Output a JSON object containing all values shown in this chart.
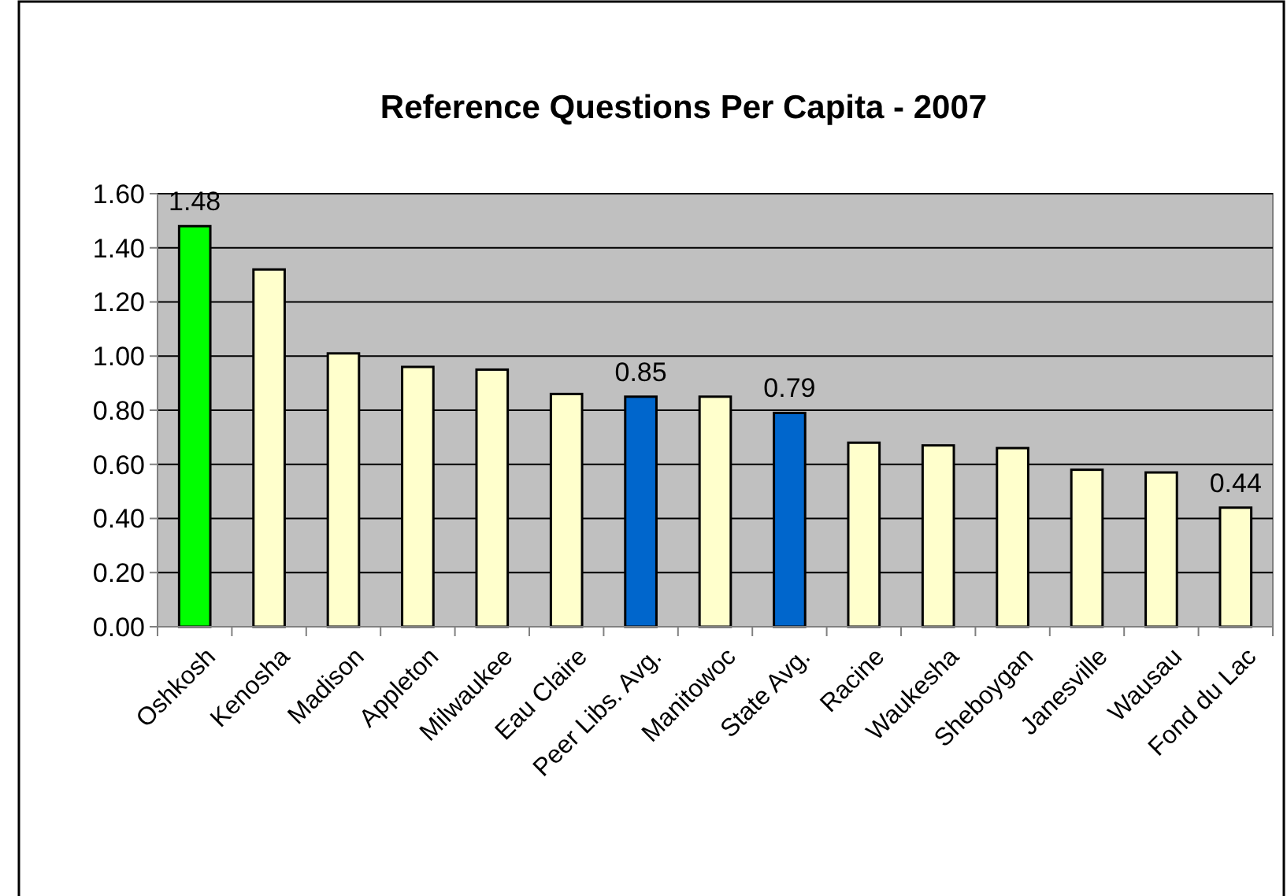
{
  "chart_data": {
    "type": "bar",
    "title": "Reference Questions Per Capita - 2007",
    "categories": [
      "Oshkosh",
      "Kenosha",
      "Madison",
      "Appleton",
      "Milwaukee",
      "Eau Claire",
      "Peer Libs. Avg.",
      "Manitowoc",
      "State Avg.",
      "Racine",
      "Waukesha",
      "Sheboygan",
      "Janesville",
      "Wausau",
      "Fond du Lac"
    ],
    "values": [
      1.48,
      1.32,
      1.01,
      0.96,
      0.95,
      0.86,
      0.85,
      0.85,
      0.79,
      0.68,
      0.67,
      0.66,
      0.58,
      0.57,
      0.44
    ],
    "colors": [
      "#00ff00",
      "#ffffcc",
      "#ffffcc",
      "#ffffcc",
      "#ffffcc",
      "#ffffcc",
      "#0066cc",
      "#ffffcc",
      "#0066cc",
      "#ffffcc",
      "#ffffcc",
      "#ffffcc",
      "#ffffcc",
      "#ffffcc",
      "#ffffcc"
    ],
    "value_labels": [
      "1.48",
      null,
      null,
      null,
      null,
      null,
      "0.85",
      null,
      "0.79",
      null,
      null,
      null,
      null,
      null,
      "0.44"
    ],
    "ylim": [
      0,
      1.6
    ],
    "yticks": [
      {
        "value": 0,
        "label": "0.00"
      },
      {
        "value": 0.2,
        "label": "0.20"
      },
      {
        "value": 0.4,
        "label": "0.40"
      },
      {
        "value": 0.6,
        "label": "0.60"
      },
      {
        "value": 0.8,
        "label": "0.80"
      },
      {
        "value": 1,
        "label": "1.00"
      },
      {
        "value": 1.2,
        "label": "1.20"
      },
      {
        "value": 1.4,
        "label": "1.40"
      },
      {
        "value": 1.6,
        "label": "1.60"
      }
    ],
    "grid": "y"
  }
}
